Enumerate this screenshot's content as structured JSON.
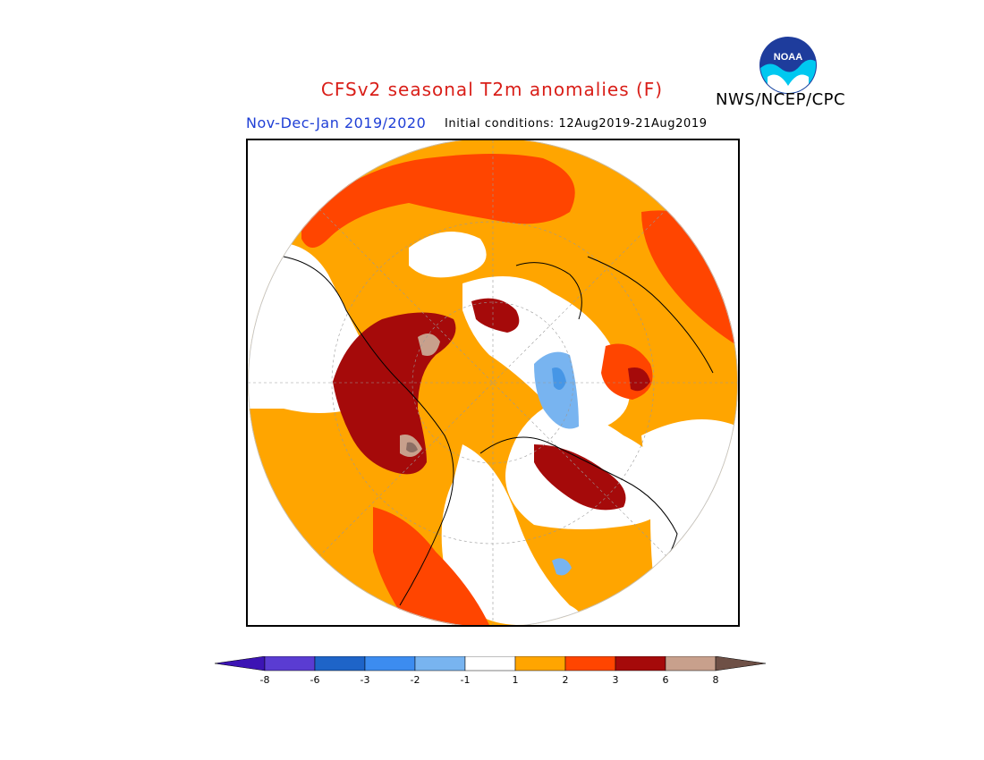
{
  "title": "CFSv2 seasonal T2m anomalies (F)",
  "organization": "NWS/NCEP/CPC",
  "logo_text": "NOAA",
  "subtitle": "Nov-Dec-Jan 2019/2020",
  "initial_conditions": "Initial conditions: 12Aug2019-21Aug2019",
  "map": {
    "projection": "polar stereographic (northern hemisphere)",
    "palette": {
      "white": "#ffffff",
      "orange_1_2": "#ffa500",
      "red_orange_2_3": "#ff4500",
      "dark_red_3_6": "#a50a0a",
      "tan_6_8": "#c8a08c",
      "grey_brown": "#8c6e64",
      "light_blue_-1_-2": "#78b4f0",
      "medium_blue_-2_-3": "#4696e6"
    }
  },
  "colorbar": {
    "labels": [
      "-8",
      "-6",
      "-3",
      "-2",
      "-1",
      "1",
      "2",
      "3",
      "6",
      "8"
    ],
    "colors": [
      "#3c14b4",
      "#5a3cd2",
      "#1e64c8",
      "#3c8cf0",
      "#78b4f0",
      "#ffffff",
      "#ffa500",
      "#ff4500",
      "#a50a0a",
      "#c8a08c",
      "#6e5046"
    ]
  }
}
